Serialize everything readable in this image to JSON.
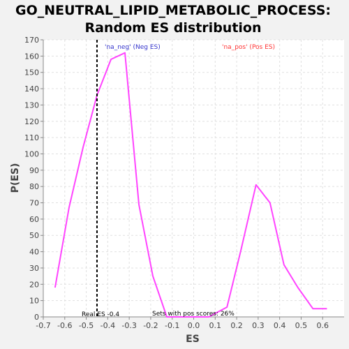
{
  "chart_data": {
    "type": "line",
    "title_line1": "GO_NEUTRAL_LIPID_METABOLIC_PROCESS:",
    "title_line2": "Random ES distribution",
    "xlabel": "ES",
    "ylabel": "P(ES)",
    "xlim": [
      -0.7,
      0.7
    ],
    "ylim": [
      0,
      170
    ],
    "xticks": [
      -0.7,
      -0.6,
      -0.5,
      -0.4,
      -0.3,
      -0.2,
      -0.1,
      0.0,
      0.1,
      0.2,
      0.3,
      0.4,
      0.5,
      0.6
    ],
    "xtick_labels": [
      "-0.7",
      "-0.6",
      "-0.5",
      "-0.4",
      "-0.3",
      "-0.2",
      "-0.1",
      "0.0",
      "0.1",
      "0.2",
      "0.3",
      "0.4",
      "0.5",
      "0.6"
    ],
    "yticks": [
      0,
      10,
      20,
      30,
      40,
      50,
      60,
      70,
      80,
      90,
      100,
      110,
      120,
      130,
      140,
      150,
      160,
      170
    ],
    "grid": true,
    "series": [
      {
        "color": "#ff44ff",
        "x": [
          -0.645,
          -0.58,
          -0.515,
          -0.45,
          -0.385,
          -0.32,
          -0.255,
          -0.19,
          -0.125,
          -0.06,
          0.005,
          0.07,
          0.155,
          0.22,
          0.29,
          0.355,
          0.42,
          0.485,
          0.555,
          0.62
        ],
        "y": [
          18,
          67,
          104,
          136,
          158,
          162,
          69,
          25,
          0,
          0,
          0,
          0,
          6,
          41,
          81,
          70,
          32,
          18,
          5,
          5
        ]
      }
    ],
    "real_es": -0.45,
    "real_es_label": "Real ES -0.4",
    "neg_label": "'na_neg' (Neg ES)",
    "neg_color": "#3333cc",
    "pos_label": "'na_pos' (Pos ES)",
    "pos_color": "#ff3333",
    "sets_label": "Sets with pos scores: 26%"
  }
}
